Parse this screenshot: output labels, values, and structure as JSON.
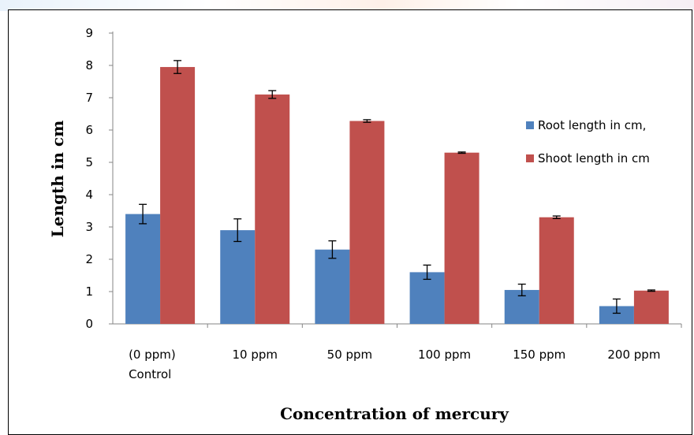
{
  "chart_data": {
    "type": "bar",
    "categories": [
      [
        "(0 ppm)",
        "Control"
      ],
      [
        "10 ppm"
      ],
      [
        "50 ppm"
      ],
      [
        "100 ppm"
      ],
      [
        "150 ppm"
      ],
      [
        "200 ppm"
      ]
    ],
    "series": [
      {
        "name": "Root length in cm,",
        "color": "#4f81bd",
        "values": [
          3.4,
          2.9,
          2.3,
          1.6,
          1.05,
          0.55
        ],
        "errors": [
          0.3,
          0.35,
          0.27,
          0.22,
          0.18,
          0.22
        ]
      },
      {
        "name": "Shoot length in cm",
        "color": "#c0504d",
        "values": [
          7.95,
          7.1,
          6.28,
          5.3,
          3.3,
          1.03
        ],
        "errors": [
          0.2,
          0.12,
          0.04,
          0.02,
          0.04,
          0.02
        ]
      }
    ],
    "xlabel": "Concentration of mercury",
    "ylabel": "Length in cm",
    "ylim": [
      0,
      9
    ],
    "yticks": [
      0,
      1,
      2,
      3,
      4,
      5,
      6,
      7,
      8,
      9
    ],
    "grid": false,
    "legend_position": "right"
  }
}
